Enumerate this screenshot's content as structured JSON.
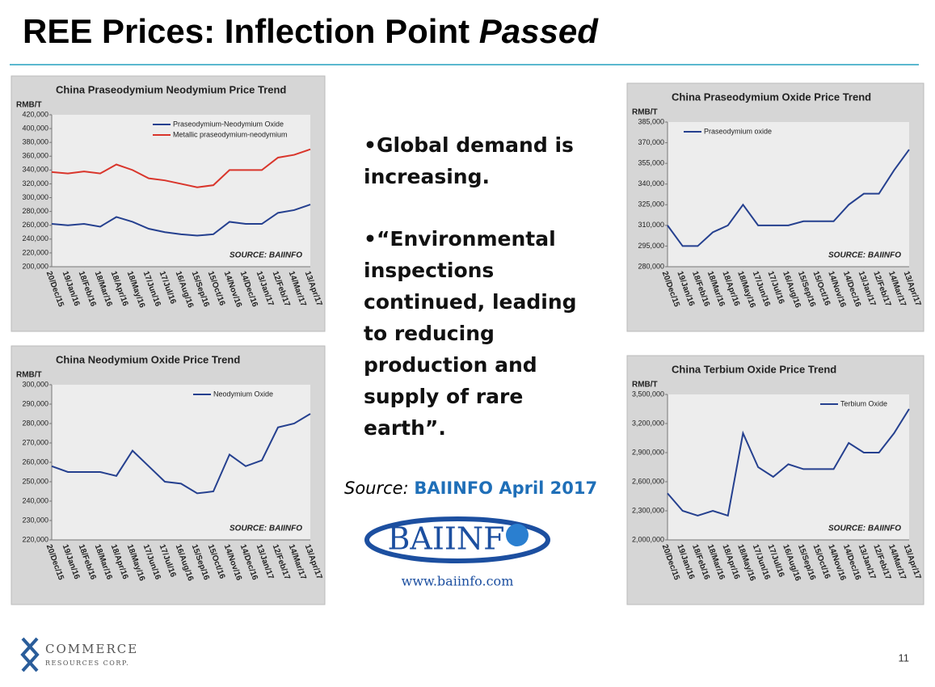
{
  "header": {
    "title": "REE Prices: Inflection Point",
    "title_emphasis": "Passed"
  },
  "bullets": [
    "•Global demand is increasing.",
    "•“Environmental inspections continued, leading to reducing production and supply of rare earth”."
  ],
  "source": {
    "label": "Source:",
    "text": "BAIINFO April 2017"
  },
  "baiinfo_logo": {
    "name": "BAIINF",
    "url": "www.baiinfo.com"
  },
  "company_logo": {
    "name": "COMMERCE",
    "subname": "RESOURCES CORP."
  },
  "page_number": "11",
  "chart_data": [
    {
      "type": "line",
      "title": "China Praseodymium  Neodymium Price Trend",
      "y_label": "RMB/T",
      "annotation": "SOURCE: BAIINFO",
      "categories": [
        "20/Dec/15",
        "19/Jan/16",
        "18/Feb/16",
        "18/Mar/16",
        "18/Apr/16",
        "18/May/16",
        "17/Jun/16",
        "17/Jul/16",
        "16/Aug/16",
        "15/Sep/16",
        "15/Oct/16",
        "14/Nov/16",
        "14/Dec/16",
        "13/Jan/17",
        "12/Feb/17",
        "14/Mar/17",
        "13/Apr/17"
      ],
      "series": [
        {
          "name": "Praseodymium-Neodymium Oxide",
          "color": "#25408f",
          "values": [
            262000,
            260000,
            262000,
            258000,
            272000,
            265000,
            255000,
            250000,
            247000,
            245000,
            247000,
            265000,
            262000,
            262000,
            278000,
            282000,
            290000
          ]
        },
        {
          "name": "Metallic praseodymium-neodymium",
          "color": "#d9352b",
          "values": [
            337000,
            335000,
            338000,
            335000,
            348000,
            340000,
            328000,
            325000,
            320000,
            315000,
            318000,
            340000,
            340000,
            340000,
            358000,
            362000,
            370000
          ]
        }
      ],
      "ylim": [
        200000,
        420000
      ],
      "yticks": [
        {
          "value": 200000,
          "label": "200,000"
        },
        {
          "value": 220000,
          "label": "220,000"
        },
        {
          "value": 240000,
          "label": "240,000"
        },
        {
          "value": 260000,
          "label": "260,000"
        },
        {
          "value": 280000,
          "label": "280,000"
        },
        {
          "value": 300000,
          "label": "300,000"
        },
        {
          "value": 320000,
          "label": "320,000"
        },
        {
          "value": 340000,
          "label": "340,000"
        },
        {
          "value": 360000,
          "label": "360,000"
        },
        {
          "value": 380000,
          "label": "380,000"
        },
        {
          "value": 400000,
          "label": "400,000"
        },
        {
          "value": 420000,
          "label": "420,000"
        }
      ]
    },
    {
      "type": "line",
      "title": "China Neodymium Oxide Price Trend",
      "y_label": "RMB/T",
      "annotation": "SOURCE: BAIINFO",
      "categories": [
        "20/Dec/15",
        "19/Jan/16",
        "18/Feb/16",
        "18/Mar/16",
        "18/Apr/16",
        "18/May/16",
        "17/Jun/16",
        "17/Jul/16",
        "16/Aug/16",
        "15/Sep/16",
        "15/Oct/16",
        "14/Nov/16",
        "14/Dec/16",
        "13/Jan/17",
        "12/Feb/17",
        "14/Mar/17",
        "13/Apr/17"
      ],
      "series": [
        {
          "name": "Neodymium Oxide",
          "color": "#25408f",
          "values": [
            258000,
            255000,
            255000,
            255000,
            253000,
            266000,
            258000,
            250000,
            249000,
            244000,
            245000,
            264000,
            258000,
            261000,
            278000,
            280000,
            285000
          ]
        }
      ],
      "ylim": [
        220000,
        300000
      ],
      "yticks": [
        {
          "value": 220000,
          "label": "220,000"
        },
        {
          "value": 230000,
          "label": "230,000"
        },
        {
          "value": 240000,
          "label": "240,000"
        },
        {
          "value": 250000,
          "label": "250,000"
        },
        {
          "value": 260000,
          "label": "260,000"
        },
        {
          "value": 270000,
          "label": "270,000"
        },
        {
          "value": 280000,
          "label": "280,000"
        },
        {
          "value": 290000,
          "label": "290,000"
        },
        {
          "value": 300000,
          "label": "300,000"
        }
      ]
    },
    {
      "type": "line",
      "title": "China Praseodymium  Oxide Price Trend",
      "y_label": "RMB/T",
      "annotation": "SOURCE: BAIINFO",
      "categories": [
        "20/Dec/15",
        "19/Jan/16",
        "18/Feb/16",
        "18/Mar/16",
        "18/Apr/16",
        "18/May/16",
        "17/Jun/16",
        "17/Jul/16",
        "16/Aug/16",
        "15/Sep/16",
        "15/Oct/16",
        "14/Nov/16",
        "14/Dec/16",
        "13/Jan/17",
        "12/Feb/17",
        "14/Mar/17",
        "13/Apr/17"
      ],
      "series": [
        {
          "name": "Praseodymium oxide",
          "color": "#25408f",
          "values": [
            310000,
            295000,
            295000,
            305000,
            310000,
            325000,
            310000,
            310000,
            310000,
            313000,
            313000,
            313000,
            325000,
            333000,
            333000,
            350000,
            365000
          ]
        }
      ],
      "ylim": [
        280000,
        385000
      ],
      "yticks": [
        {
          "value": 280000,
          "label": "280,000"
        },
        {
          "value": 295000,
          "label": "295,000"
        },
        {
          "value": 310000,
          "label": "310,000"
        },
        {
          "value": 325000,
          "label": "325,000"
        },
        {
          "value": 340000,
          "label": "340,000"
        },
        {
          "value": 355000,
          "label": "355,000"
        },
        {
          "value": 370000,
          "label": "370,000"
        },
        {
          "value": 385000,
          "label": "385,000"
        }
      ]
    },
    {
      "type": "line",
      "title": "China Terbium Oxide Price Trend",
      "y_label": "RMB/T",
      "annotation": "SOURCE: BAIINFO",
      "categories": [
        "20/Dec/15",
        "19/Jan/16",
        "18/Feb/16",
        "18/Mar/16",
        "18/Apr/16",
        "18/May/16",
        "17/Jun/16",
        "17/Jul/16",
        "16/Aug/16",
        "15/Sep/16",
        "15/Oct/16",
        "14/Nov/16",
        "14/Dec/16",
        "13/Jan/17",
        "12/Feb/17",
        "14/Mar/17",
        "13/Apr/17"
      ],
      "series": [
        {
          "name": "Terbium Oxide",
          "color": "#25408f",
          "values": [
            2480000,
            2300000,
            2250000,
            2300000,
            2250000,
            3100000,
            2750000,
            2650000,
            2780000,
            2730000,
            2730000,
            2730000,
            3000000,
            2900000,
            2900000,
            3100000,
            3350000
          ]
        }
      ],
      "ylim": [
        2000000,
        3500000
      ],
      "yticks": [
        {
          "value": 2000000,
          "label": "2,000,000"
        },
        {
          "value": 2300000,
          "label": "2,300,000"
        },
        {
          "value": 2600000,
          "label": "2,600,000"
        },
        {
          "value": 2900000,
          "label": "2,900,000"
        },
        {
          "value": 3200000,
          "label": "3,200,000"
        },
        {
          "value": 3500000,
          "label": "3,500,000"
        }
      ]
    }
  ]
}
